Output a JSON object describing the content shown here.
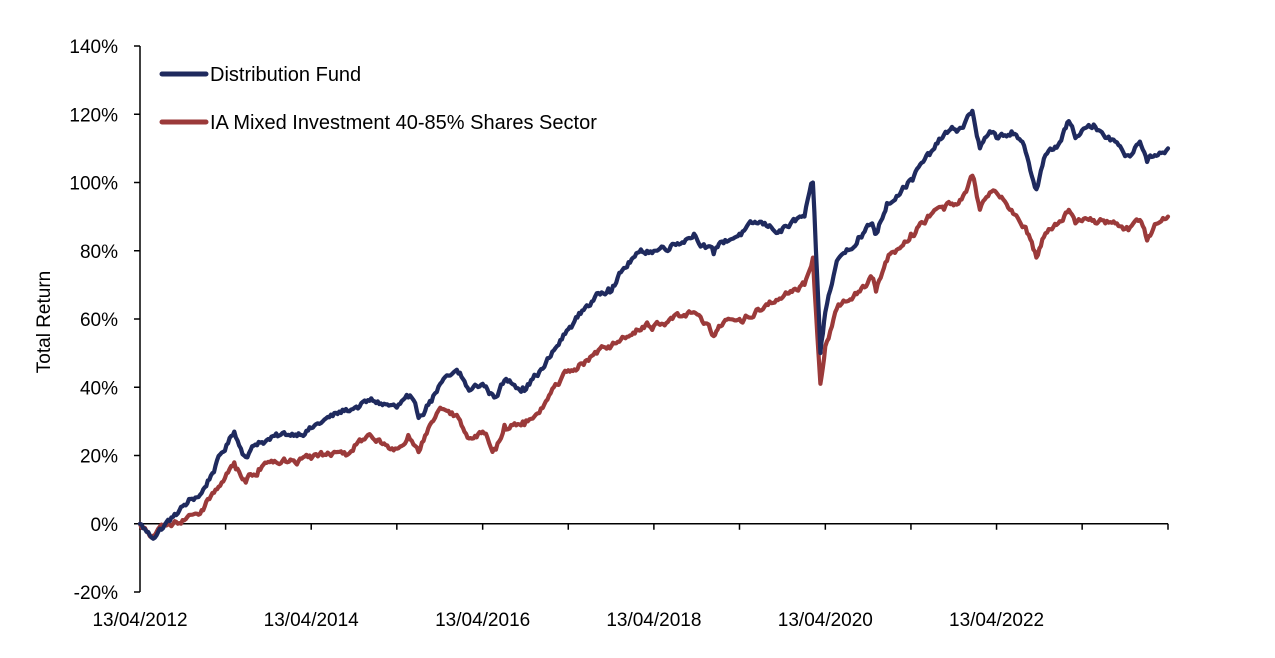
{
  "chart_data": {
    "type": "line",
    "title": "",
    "xlabel": "",
    "ylabel": "Total Return",
    "x_tick_labels": [
      "13/04/2012",
      "13/04/2014",
      "13/04/2016",
      "13/04/2018",
      "13/04/2020",
      "13/04/2022"
    ],
    "y_tick_labels": [
      "-20%",
      "0%",
      "20%",
      "40%",
      "60%",
      "80%",
      "100%",
      "120%",
      "140%"
    ],
    "ylim": [
      -20,
      140
    ],
    "xlim": [
      "2012-04-13",
      "2024-04-13"
    ],
    "y_unit": "%",
    "grid": false,
    "legend_position": "top-left",
    "series": [
      {
        "name": "Distribution Fund",
        "color": "#1f2a5e",
        "x": [
          "2012-04-13",
          "2012-06-01",
          "2012-09-01",
          "2012-11-01",
          "2013-01-01",
          "2013-03-01",
          "2013-05-20",
          "2013-07-01",
          "2013-09-01",
          "2014-01-01",
          "2014-04-13",
          "2014-06-01",
          "2014-09-01",
          "2014-10-15",
          "2015-01-01",
          "2015-04-13",
          "2015-06-01",
          "2015-07-15",
          "2015-09-01",
          "2015-10-15",
          "2016-01-01",
          "2016-02-15",
          "2016-04-13",
          "2016-06-01",
          "2016-07-15",
          "2016-10-01",
          "2017-01-01",
          "2017-04-13",
          "2017-07-01",
          "2017-10-01",
          "2018-01-15",
          "2018-03-15",
          "2018-04-13",
          "2018-07-01",
          "2018-10-01",
          "2018-12-24",
          "2019-01-15",
          "2019-04-13",
          "2019-07-01",
          "2019-10-01",
          "2020-01-15",
          "2020-02-20",
          "2020-03-23",
          "2020-04-13",
          "2020-06-01",
          "2020-09-01",
          "2020-10-30",
          "2020-11-15",
          "2021-01-01",
          "2021-04-13",
          "2021-07-01",
          "2021-09-01",
          "2021-11-15",
          "2021-12-31",
          "2022-02-01",
          "2022-03-08",
          "2022-04-13",
          "2022-06-16",
          "2022-08-15",
          "2022-09-30",
          "2022-11-01",
          "2023-01-01",
          "2023-02-15",
          "2023-03-15",
          "2023-06-01",
          "2023-09-01",
          "2023-10-27",
          "2023-12-15",
          "2024-01-15",
          "2024-03-01",
          "2024-04-13"
        ],
        "y": [
          0,
          -4,
          2,
          6,
          9,
          17,
          27,
          20,
          24,
          26,
          28,
          30,
          33,
          34,
          36,
          34,
          37,
          31,
          36,
          41,
          44,
          39,
          41,
          37,
          42,
          40,
          46,
          57,
          64,
          69,
          78,
          80,
          80,
          82,
          85,
          79,
          82,
          85,
          88,
          86,
          90,
          100,
          50,
          62,
          77,
          84,
          88,
          85,
          94,
          101,
          108,
          114,
          116,
          121,
          110,
          114,
          113,
          115,
          109,
          98,
          107,
          111,
          118,
          113,
          117,
          112,
          108,
          112,
          106,
          108,
          110
        ]
      },
      {
        "name": "IA Mixed Investment 40-85% Shares Sector",
        "color": "#9b3a3a",
        "x": [
          "2012-04-13",
          "2012-06-01",
          "2012-09-01",
          "2012-11-01",
          "2013-01-01",
          "2013-03-01",
          "2013-05-20",
          "2013-07-01",
          "2013-09-01",
          "2014-01-01",
          "2014-04-13",
          "2014-06-01",
          "2014-09-01",
          "2014-10-15",
          "2015-01-01",
          "2015-04-13",
          "2015-06-01",
          "2015-07-15",
          "2015-09-01",
          "2015-10-15",
          "2016-01-01",
          "2016-02-15",
          "2016-04-13",
          "2016-06-01",
          "2016-07-15",
          "2016-10-01",
          "2017-01-01",
          "2017-04-13",
          "2017-07-01",
          "2017-10-01",
          "2018-01-15",
          "2018-03-15",
          "2018-04-13",
          "2018-07-01",
          "2018-10-01",
          "2018-12-24",
          "2019-01-15",
          "2019-04-13",
          "2019-07-01",
          "2019-10-01",
          "2020-01-15",
          "2020-02-20",
          "2020-03-23",
          "2020-04-13",
          "2020-06-01",
          "2020-09-01",
          "2020-10-30",
          "2020-11-15",
          "2021-01-01",
          "2021-04-13",
          "2021-07-01",
          "2021-09-01",
          "2021-11-15",
          "2021-12-31",
          "2022-02-01",
          "2022-03-08",
          "2022-04-13",
          "2022-06-16",
          "2022-08-15",
          "2022-09-30",
          "2022-11-01",
          "2023-01-01",
          "2023-02-15",
          "2023-03-15",
          "2023-06-01",
          "2023-09-01",
          "2023-10-27",
          "2023-12-15",
          "2024-01-15",
          "2024-03-01",
          "2024-04-13"
        ],
        "y": [
          0,
          -4,
          0,
          2,
          4,
          10,
          18,
          13,
          16,
          18,
          19,
          20,
          21,
          23,
          25,
          22,
          26,
          21,
          29,
          34,
          31,
          25,
          27,
          22,
          29,
          30,
          35,
          45,
          48,
          52,
          56,
          59,
          58,
          60,
          62,
          55,
          58,
          60,
          63,
          66,
          70,
          78,
          41,
          52,
          63,
          68,
          72,
          68,
          77,
          85,
          90,
          92,
          95,
          102,
          92,
          96,
          97,
          92,
          87,
          78,
          84,
          88,
          92,
          88,
          89,
          88,
          86,
          89,
          83,
          88,
          90
        ]
      }
    ]
  }
}
